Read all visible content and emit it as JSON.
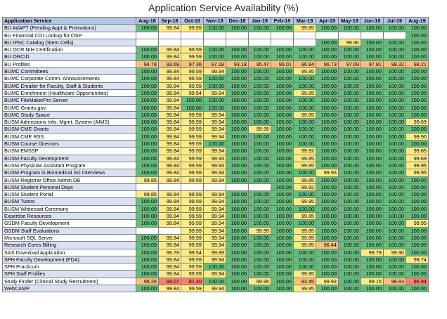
{
  "title": "Application Service Availability (%)",
  "header": [
    "Application Service",
    "Aug-18",
    "Sep-18",
    "Oct-18",
    "Nov-18",
    "Dec-18",
    "Jan-19",
    "Feb-19",
    "Mar-19",
    "Apr-19",
    "May-19",
    "Jun-19",
    "Jul-19",
    "Aug-19"
  ],
  "colors": {
    "green": "#63be7b",
    "yellow": "#ffeb84",
    "orange": "#fbbf7a",
    "red": "#f8806d",
    "header": "#b4c6e7",
    "band": "#d9e1f2"
  },
  "rows": [
    {
      "name": "BU AdAPT (Pending Appt & Promotions)",
      "v": [
        "100.00",
        "99.84",
        "99.59",
        "100.00",
        "100.00",
        "100.00",
        "100.00",
        "99.85",
        "100.00",
        "100.00",
        "100.00",
        "100.00",
        "100.00"
      ]
    },
    {
      "name": "BU Financial COI Lookup for OSP",
      "v": [
        "",
        "",
        "",
        "",
        "",
        "",
        "",
        "",
        "",
        "",
        "",
        "",
        "100.00"
      ]
    },
    {
      "name": "BU IPSC Catalog (Stem Cells)",
      "v": [
        "",
        "",
        "",
        "",
        "",
        "",
        "",
        "",
        "100.00",
        "99.90",
        "100.00",
        "100.00",
        "100.00"
      ]
    },
    {
      "name": "BU OCR NIH Certification",
      "v": [
        "100.00",
        "99.84",
        "99.59",
        "100.00",
        "100.00",
        "100.00",
        "100.00",
        "100.00",
        "100.00",
        "100.00",
        "100.00",
        "100.00",
        "100.00"
      ]
    },
    {
      "name": "BU ORCID",
      "v": [
        "100.00",
        "99.84",
        "99.59",
        "100.00",
        "100.00",
        "100.00",
        "100.00",
        "100.00",
        "100.00",
        "100.00",
        "100.00",
        "100.00",
        "100.00"
      ]
    },
    {
      "name": "BU Profiles",
      "v": [
        "94.78",
        "93.69",
        "97.36",
        "97.18",
        "93.18",
        "95.47",
        "96.01",
        "96.84",
        "96.73",
        "97.69",
        "97.81",
        "98.32",
        "98.21"
      ]
    },
    {
      "name": "BUMC Committees",
      "v": [
        "100.00",
        "99.84",
        "99.59",
        "99.94",
        "100.00",
        "100.00",
        "100.00",
        "99.85",
        "100.00",
        "100.00",
        "100.00",
        "100.00",
        "100.00"
      ]
    },
    {
      "name": "BUMC Corporate Comm. Announcements",
      "v": [
        "100.00",
        "99.84",
        "99.59",
        "100.00",
        "100.00",
        "100.00",
        "100.00",
        "100.00",
        "100.00",
        "100.00",
        "100.00",
        "100.00",
        "100.00"
      ]
    },
    {
      "name": "BUMC Emailer for Faculty, Staff & Students",
      "v": [
        "100.00",
        "99.84",
        "99.59",
        "100.00",
        "100.00",
        "100.00",
        "100.00",
        "100.00",
        "100.00",
        "100.00",
        "100.00",
        "100.00",
        "100.00"
      ]
    },
    {
      "name": "BUMC Enrichment (Healthcare Opportunities)",
      "v": [
        "100.00",
        "99.84",
        "99.54",
        "99.94",
        "100.00",
        "100.00",
        "100.00",
        "99.85",
        "100.00",
        "100.00",
        "100.00",
        "100.00",
        "100.00"
      ]
    },
    {
      "name": "BUMC FileMakerPro Server",
      "v": [
        "100.00",
        "99.84",
        "100.00",
        "100.00",
        "100.00",
        "100.00",
        "100.00",
        "100.00",
        "100.00",
        "100.00",
        "100.00",
        "100.00",
        "100.00"
      ]
    },
    {
      "name": "BUMC Grants.gov",
      "v": [
        "100.00",
        "99.84",
        "100.00",
        "100.00",
        "100.00",
        "100.00",
        "100.00",
        "100.00",
        "100.00",
        "100.00",
        "100.00",
        "100.00",
        "100.00"
      ]
    },
    {
      "name": "BUMC Study Space",
      "v": [
        "100.00",
        "99.84",
        "99.59",
        "99.94",
        "100.00",
        "100.00",
        "100.00",
        "99.85",
        "100.00",
        "100.00",
        "100.00",
        "100.00",
        "100.00"
      ]
    },
    {
      "name": "BUSM Admissions Info. Mgmt. System (AIMS)",
      "v": [
        "100.00",
        "99.84",
        "99.59",
        "99.94",
        "100.00",
        "100.00",
        "100.00",
        "100.00",
        "100.00",
        "100.00",
        "100.00",
        "100.00",
        "99.69"
      ]
    },
    {
      "name": "BUSM CME Grants",
      "v": [
        "100.00",
        "99.84",
        "99.59",
        "99.94",
        "100.00",
        "99.95",
        "100.00",
        "100.00",
        "100.00",
        "100.00",
        "100.00",
        "100.00",
        "100.00"
      ]
    },
    {
      "name": "BUSM CME RSS",
      "v": [
        "100.00",
        "99.84",
        "99.59",
        "99.94",
        "100.00",
        "100.00",
        "100.00",
        "100.00",
        "100.00",
        "100.00",
        "100.00",
        "100.00",
        "99.90"
      ]
    },
    {
      "name": "BUSM Course Directors",
      "v": [
        "100.00",
        "99.84",
        "99.59",
        "100.00",
        "100.00",
        "100.00",
        "100.00",
        "100.00",
        "100.00",
        "100.00",
        "100.00",
        "100.00",
        "100.00"
      ]
    },
    {
      "name": "BUSM EMSSP",
      "v": [
        "100.00",
        "99.84",
        "99.59",
        "99.94",
        "100.00",
        "100.00",
        "100.00",
        "99.92",
        "100.00",
        "100.00",
        "100.00",
        "100.00",
        "99.85"
      ]
    },
    {
      "name": "BUSM Faculty Development",
      "v": [
        "100.00",
        "99.84",
        "99.59",
        "99.94",
        "100.00",
        "100.00",
        "100.00",
        "99.85",
        "100.00",
        "100.00",
        "100.00",
        "100.00",
        "99.69"
      ]
    },
    {
      "name": "BUSM Physician Assistant Program",
      "v": [
        "100.00",
        "99.84",
        "99.59",
        "99.94",
        "100.00",
        "100.00",
        "100.00",
        "99.85",
        "100.00",
        "100.00",
        "100.00",
        "100.00",
        "99.95"
      ]
    },
    {
      "name": "BUSM Program in Biomedical Sci Interviews",
      "v": [
        "100.00",
        "99.84",
        "99.59",
        "99.94",
        "100.00",
        "100.00",
        "100.00",
        "100.00",
        "99.93",
        "100.00",
        "100.00",
        "100.00",
        "99.95"
      ]
    },
    {
      "name": "BUSM Registrar Office Admin DB",
      "v": [
        "99.85",
        "99.84",
        "99.59",
        "99.94",
        "100.00",
        "100.00",
        "100.00",
        "99.85",
        "100.00",
        "100.00",
        "100.00",
        "100.00",
        "100.00"
      ]
    },
    {
      "name": "BUSM Student Personal Days",
      "v": [
        "",
        "",
        "",
        "",
        "",
        "",
        "100.00",
        "99.92",
        "100.00",
        "100.00",
        "100.00",
        "100.00",
        "100.00"
      ]
    },
    {
      "name": "BUSM Student Portal",
      "v": [
        "99.85",
        "99.84",
        "99.59",
        "99.94",
        "100.00",
        "100.00",
        "100.00",
        "100.00",
        "100.00",
        "100.00",
        "100.00",
        "100.00",
        "100.00"
      ]
    },
    {
      "name": "BUSM Tutors",
      "v": [
        "100.00",
        "99.84",
        "99.59",
        "99.94",
        "100.00",
        "100.00",
        "100.00",
        "99.85",
        "100.00",
        "100.00",
        "100.00",
        "100.00",
        "100.00"
      ]
    },
    {
      "name": "BUSM Whitecoat Ceremony",
      "v": [
        "100.00",
        "99.84",
        "99.59",
        "99.94",
        "100.00",
        "100.00",
        "100.00",
        "100.00",
        "100.00",
        "100.00",
        "100.00",
        "100.00",
        "100.00"
      ]
    },
    {
      "name": "Expertise Resources",
      "v": [
        "100.00",
        "99.84",
        "99.59",
        "99.94",
        "100.00",
        "100.00",
        "100.00",
        "99.85",
        "100.00",
        "100.00",
        "100.00",
        "100.00",
        "100.00"
      ]
    },
    {
      "name": "GSDM Faculty Development",
      "v": [
        "100.00",
        "99.84",
        "99.59",
        "99.94",
        "100.00",
        "100.00",
        "100.00",
        "100.00",
        "100.00",
        "100.00",
        "100.00",
        "100.00",
        "99.95"
      ]
    },
    {
      "name": "GSDM Staff Evaluations",
      "v": [
        "",
        "",
        "99.59",
        "99.94",
        "100.00",
        "99.95",
        "100.00",
        "99.85",
        "100.00",
        "100.00",
        "100.00",
        "100.00",
        "100.00"
      ]
    },
    {
      "name": "Microsoft SQL Server",
      "v": [
        "100.00",
        "99.84",
        "99.59",
        "99.94",
        "100.00",
        "100.00",
        "100.00",
        "99.85",
        "100.00",
        "100.00",
        "100.00",
        "100.00",
        "100.00"
      ]
    },
    {
      "name": "Research Cores Billing",
      "v": [
        "100.00",
        "99.84",
        "99.59",
        "99.94",
        "100.00",
        "100.00",
        "100.00",
        "99.85",
        "96.44",
        "100.00",
        "100.00",
        "100.00",
        "100.00"
      ]
    },
    {
      "name": "SAS Download Application",
      "v": [
        "100.00",
        "99.79",
        "99.54",
        "99.89",
        "100.00",
        "100.00",
        "100.00",
        "100.00",
        "100.00",
        "100.00",
        "99.79",
        "99.90",
        "100.00"
      ]
    },
    {
      "name": "SPH Faculty Development (FDA)",
      "v": [
        "100.00",
        "99.84",
        "99.59",
        "99.94",
        "100.00",
        "100.00",
        "100.00",
        "100.00",
        "100.00",
        "100.00",
        "100.00",
        "100.00",
        "99.74"
      ]
    },
    {
      "name": "SPH Practicum",
      "v": [
        "100.00",
        "99.84",
        "99.59",
        "100.00",
        "100.00",
        "100.00",
        "100.00",
        "100.00",
        "100.00",
        "100.00",
        "100.00",
        "100.00",
        "100.00"
      ]
    },
    {
      "name": "SPH Staff Profiles",
      "v": [
        "100.00",
        "99.84",
        "99.59",
        "99.94",
        "100.00",
        "100.00",
        "100.00",
        "99.85",
        "100.00",
        "100.00",
        "100.00",
        "100.00",
        "100.00"
      ]
    },
    {
      "name": "Study Finder (Clinical Study Recruitment)",
      "v": [
        "98.26",
        "84.07",
        "81.40",
        "100.00",
        "100.00",
        "99.95",
        "100.00",
        "93.45",
        "99.93",
        "100.00",
        "99.15",
        "98.83",
        "86.94"
      ]
    },
    {
      "name": "WebCAMP",
      "v": [
        "100.00",
        "99.84",
        "99.59",
        "99.94",
        "100.00",
        "100.00",
        "100.00",
        "99.85",
        "100.00",
        "100.00",
        "100.00",
        "100.00",
        "100.00"
      ]
    }
  ]
}
